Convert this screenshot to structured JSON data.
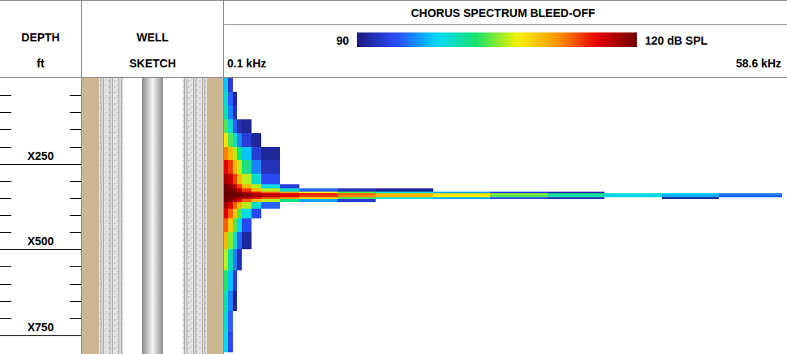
{
  "chart_data": {
    "type": "heatmap",
    "title": "CHORUS SPECTRUM BLEED-OFF",
    "ylabel": [
      "DEPTH",
      "ft"
    ],
    "sketch_label": [
      "WELL",
      "SKETCH"
    ],
    "xlim": [
      0.1,
      58.6
    ],
    "xticks": [
      {
        "value": 0.1,
        "label": "0.1 kHz"
      },
      {
        "value": 58.6,
        "label": "58.6 kHz"
      }
    ],
    "ylim": [
      0,
      800
    ],
    "yticks": [
      {
        "value": 250,
        "label": "X250"
      },
      {
        "value": 500,
        "label": "X500"
      },
      {
        "value": 750,
        "label": "X750"
      }
    ],
    "minor_yticks": [
      50,
      100,
      150,
      200,
      300,
      350,
      400,
      450,
      550,
      600,
      650,
      700
    ],
    "colorbar_range": [
      90,
      120
    ],
    "colorbar_ticks": [
      90,
      {
        "value": 120,
        "label": "120 dB SPL"
      }
    ],
    "x_edges": [
      0.1,
      0.5,
      1.0,
      1.5,
      2.0,
      3.0,
      4.0,
      6.0,
      8.0,
      12,
      16,
      22,
      28,
      34,
      40,
      46,
      52,
      58.6
    ],
    "y_edges": [
      0,
      40,
      80,
      120,
      160,
      200,
      240,
      280,
      310,
      322,
      332,
      337,
      342,
      347,
      352,
      362,
      380,
      410,
      450,
      500,
      560,
      620,
      680,
      740,
      800
    ],
    "cells": [
      [
        98,
        93,
        null,
        null,
        null,
        null,
        null,
        null,
        null,
        null,
        null,
        null,
        null,
        null,
        null,
        null,
        null
      ],
      [
        100,
        95,
        91,
        null,
        null,
        null,
        null,
        null,
        null,
        null,
        null,
        null,
        null,
        null,
        null,
        null,
        null
      ],
      [
        101,
        96,
        92,
        null,
        null,
        null,
        null,
        null,
        null,
        null,
        null,
        null,
        null,
        null,
        null,
        null,
        null
      ],
      [
        104,
        100,
        95,
        92,
        91,
        null,
        null,
        null,
        null,
        null,
        null,
        null,
        null,
        null,
        null,
        null,
        null
      ],
      [
        108,
        104,
        100,
        96,
        93,
        91,
        null,
        null,
        null,
        null,
        null,
        null,
        null,
        null,
        null,
        null,
        null
      ],
      [
        112,
        110,
        106,
        102,
        98,
        93,
        91,
        null,
        null,
        null,
        null,
        null,
        null,
        null,
        null,
        null,
        null
      ],
      [
        116,
        114,
        110,
        106,
        102,
        96,
        92,
        null,
        null,
        null,
        null,
        null,
        null,
        null,
        null,
        null,
        null
      ],
      [
        118,
        117,
        114,
        110,
        106,
        100,
        94,
        null,
        null,
        null,
        null,
        null,
        null,
        null,
        null,
        null,
        null
      ],
      [
        120,
        119,
        117,
        114,
        110,
        106,
        99,
        93,
        null,
        null,
        null,
        null,
        null,
        null,
        null,
        null,
        null
      ],
      [
        120,
        120,
        119,
        117,
        114,
        110,
        106,
        100,
        95,
        92,
        91,
        null,
        null,
        null,
        null,
        null,
        null
      ],
      [
        120,
        120,
        120,
        119,
        117,
        115,
        113,
        111,
        108,
        104,
        100,
        97,
        94,
        92,
        null,
        null,
        null
      ],
      [
        120,
        120,
        120,
        120,
        119,
        118,
        117,
        116,
        115,
        113,
        110,
        108,
        105,
        102,
        100,
        98,
        96
      ],
      [
        120,
        120,
        120,
        120,
        119,
        118,
        117,
        116,
        114,
        112,
        110,
        107,
        104,
        101,
        99,
        97,
        95
      ],
      [
        120,
        120,
        119,
        118,
        117,
        115,
        113,
        111,
        108,
        104,
        100,
        97,
        94,
        92,
        null,
        91,
        null
      ],
      [
        120,
        119,
        118,
        116,
        113,
        110,
        106,
        102,
        97,
        93,
        null,
        null,
        null,
        null,
        null,
        null,
        null
      ],
      [
        118,
        116,
        113,
        110,
        106,
        100,
        95,
        null,
        null,
        null,
        null,
        null,
        null,
        null,
        null,
        null,
        null
      ],
      [
        116,
        113,
        109,
        104,
        99,
        94,
        null,
        null,
        null,
        null,
        null,
        null,
        null,
        null,
        null,
        null,
        null
      ],
      [
        113,
        109,
        104,
        99,
        94,
        null,
        null,
        null,
        null,
        null,
        null,
        null,
        null,
        null,
        null,
        null,
        null
      ],
      [
        110,
        105,
        100,
        95,
        91,
        null,
        null,
        null,
        null,
        null,
        null,
        null,
        null,
        null,
        null,
        null,
        null
      ],
      [
        106,
        101,
        96,
        92,
        null,
        null,
        null,
        null,
        null,
        null,
        null,
        null,
        null,
        null,
        null,
        null,
        null
      ],
      [
        103,
        98,
        93,
        null,
        null,
        null,
        null,
        null,
        null,
        null,
        null,
        null,
        null,
        null,
        null,
        null,
        null
      ],
      [
        101,
        96,
        91,
        null,
        null,
        null,
        null,
        null,
        null,
        null,
        null,
        null,
        null,
        null,
        null,
        null,
        null
      ],
      [
        100,
        95,
        null,
        null,
        null,
        null,
        null,
        null,
        null,
        null,
        null,
        null,
        null,
        null,
        null,
        null,
        null
      ],
      [
        99,
        94,
        null,
        null,
        null,
        null,
        null,
        null,
        null,
        null,
        null,
        null,
        null,
        null,
        null,
        null,
        null
      ]
    ]
  }
}
